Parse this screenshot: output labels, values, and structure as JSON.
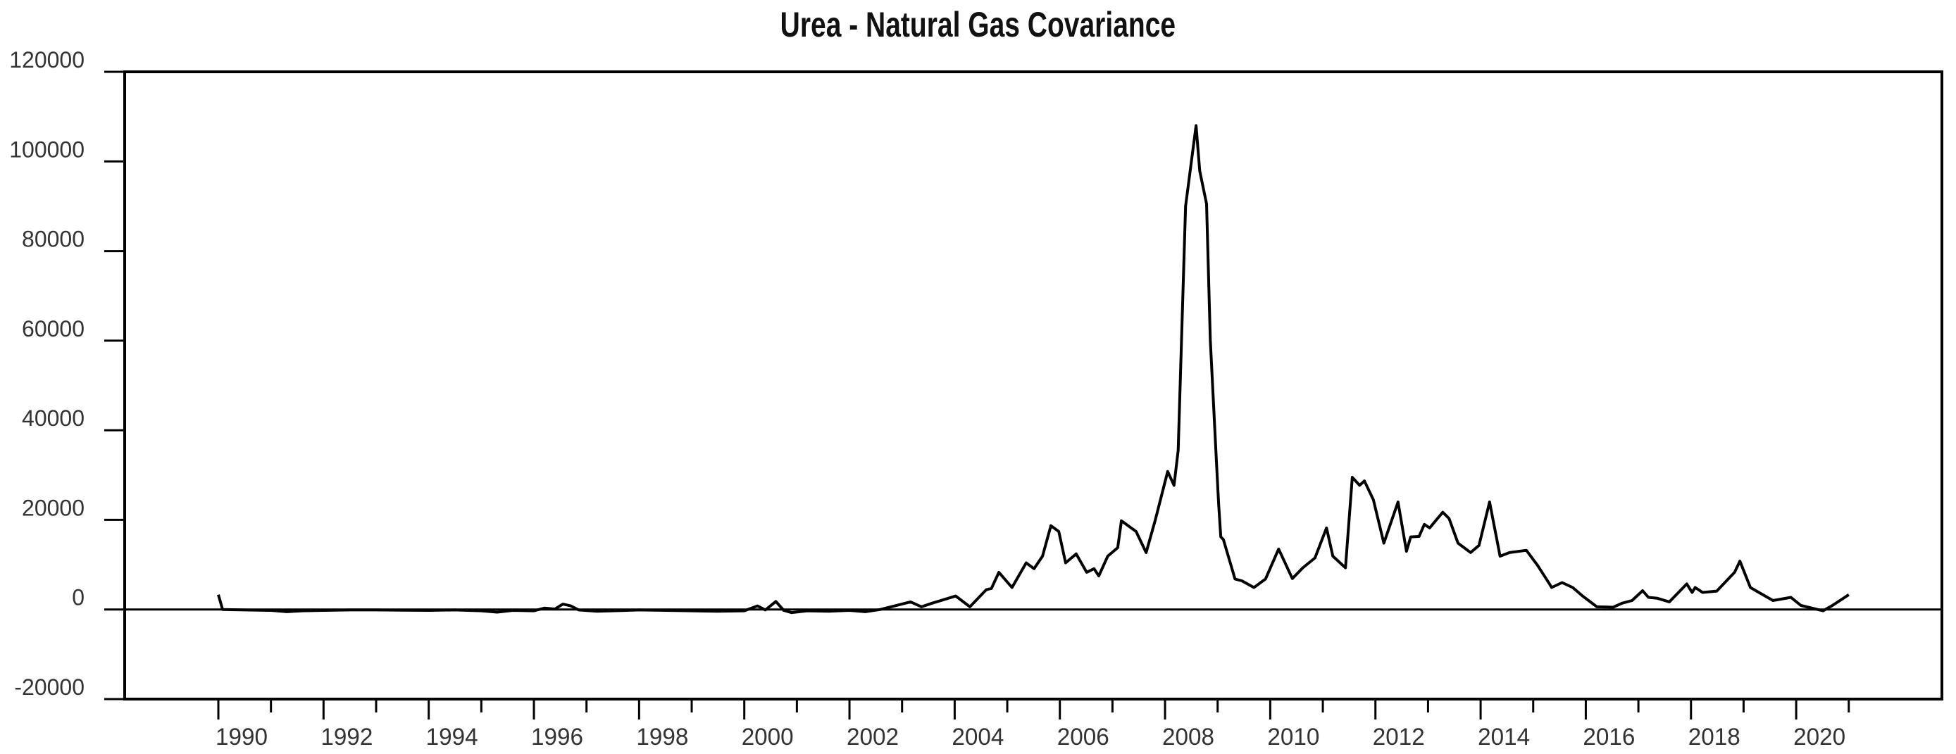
{
  "chart_data": {
    "type": "line",
    "title": "Urea - Natural Gas Covariance",
    "xlabel": "",
    "ylabel": "",
    "ylim": [
      -20000,
      120000
    ],
    "xlim": [
      1989.55,
      2022.35
    ],
    "grid": false,
    "legend": null,
    "zero_line": true,
    "y_ticks": [
      -20000,
      0,
      20000,
      40000,
      60000,
      80000,
      100000,
      120000
    ],
    "y_tick_labels": [
      "-20000",
      "0",
      "20000",
      "40000",
      "60000",
      "80000",
      "100000",
      "120000"
    ],
    "x_ticks": [
      1990,
      1992,
      1994,
      1996,
      1998,
      2000,
      2002,
      2004,
      2006,
      2008,
      2010,
      2012,
      2014,
      2016,
      2018,
      2020
    ],
    "x_tick_labels": [
      "1990",
      "1992",
      "1994",
      "1996",
      "1998",
      "2000",
      "2002",
      "2004",
      "2006",
      "2008",
      "2010",
      "2012",
      "2014",
      "2016",
      "2018",
      "2020"
    ],
    "x_minor_ticks": [
      1991,
      1993,
      1995,
      1997,
      1999,
      2001,
      2003,
      2005,
      2007,
      2009,
      2011,
      2013,
      2015,
      2017,
      2019,
      2021
    ],
    "series": [
      {
        "name": "Urea - Natural Gas Covariance",
        "color": "#000000",
        "points": [
          [
            1990.0,
            3300
          ],
          [
            1990.08,
            0
          ],
          [
            1990.5,
            -100
          ],
          [
            1991.0,
            -200
          ],
          [
            1991.3,
            -500
          ],
          [
            1991.6,
            -300
          ],
          [
            1992.0,
            -200
          ],
          [
            1992.5,
            -100
          ],
          [
            1993.0,
            -100
          ],
          [
            1993.5,
            -150
          ],
          [
            1994.0,
            -200
          ],
          [
            1994.5,
            -100
          ],
          [
            1995.0,
            -300
          ],
          [
            1995.3,
            -600
          ],
          [
            1995.6,
            -200
          ],
          [
            1996.0,
            -300
          ],
          [
            1996.2,
            300
          ],
          [
            1996.4,
            100
          ],
          [
            1996.55,
            1200
          ],
          [
            1996.7,
            800
          ],
          [
            1996.85,
            -100
          ],
          [
            1997.2,
            -400
          ],
          [
            1997.5,
            -300
          ],
          [
            1998.0,
            -100
          ],
          [
            1998.5,
            -200
          ],
          [
            1999.0,
            -300
          ],
          [
            1999.5,
            -400
          ],
          [
            2000.0,
            -300
          ],
          [
            2000.25,
            800
          ],
          [
            2000.4,
            -100
          ],
          [
            2000.6,
            1800
          ],
          [
            2000.75,
            -200
          ],
          [
            2000.9,
            -700
          ],
          [
            2001.2,
            -300
          ],
          [
            2001.6,
            -400
          ],
          [
            2002.0,
            -200
          ],
          [
            2002.3,
            -500
          ],
          [
            2002.59,
            0
          ],
          [
            2003.16,
            1700
          ],
          [
            2003.37,
            600
          ],
          [
            2003.57,
            1400
          ],
          [
            2004.02,
            3000
          ],
          [
            2004.29,
            600
          ],
          [
            2004.6,
            4400
          ],
          [
            2004.7,
            4700
          ],
          [
            2004.84,
            8300
          ],
          [
            2005.09,
            4900
          ],
          [
            2005.36,
            10400
          ],
          [
            2005.51,
            9100
          ],
          [
            2005.67,
            11900
          ],
          [
            2005.83,
            18700
          ],
          [
            2005.98,
            17400
          ],
          [
            2006.11,
            10400
          ],
          [
            2006.31,
            12400
          ],
          [
            2006.51,
            8300
          ],
          [
            2006.65,
            9100
          ],
          [
            2006.74,
            7500
          ],
          [
            2006.91,
            11900
          ],
          [
            2007.1,
            13800
          ],
          [
            2007.17,
            19800
          ],
          [
            2007.45,
            17400
          ],
          [
            2007.64,
            12700
          ],
          [
            2007.81,
            19800
          ],
          [
            2008.05,
            30800
          ],
          [
            2008.17,
            27700
          ],
          [
            2008.25,
            35500
          ],
          [
            2008.39,
            90000
          ],
          [
            2008.59,
            108000
          ],
          [
            2008.66,
            97900
          ],
          [
            2008.79,
            90500
          ],
          [
            2008.86,
            60200
          ],
          [
            2008.98,
            32400
          ],
          [
            2009.02,
            23400
          ],
          [
            2009.06,
            16200
          ],
          [
            2009.11,
            15600
          ],
          [
            2009.33,
            6800
          ],
          [
            2009.46,
            6400
          ],
          [
            2009.69,
            4900
          ],
          [
            2009.91,
            6800
          ],
          [
            2010.16,
            13500
          ],
          [
            2010.42,
            6900
          ],
          [
            2010.62,
            9300
          ],
          [
            2010.85,
            11500
          ],
          [
            2011.07,
            18200
          ],
          [
            2011.19,
            11900
          ],
          [
            2011.43,
            9300
          ],
          [
            2011.56,
            29500
          ],
          [
            2011.7,
            27700
          ],
          [
            2011.79,
            28700
          ],
          [
            2011.96,
            24500
          ],
          [
            2012.16,
            14800
          ],
          [
            2012.43,
            24000
          ],
          [
            2012.59,
            13000
          ],
          [
            2012.67,
            16200
          ],
          [
            2012.83,
            16300
          ],
          [
            2012.93,
            19000
          ],
          [
            2013.03,
            18200
          ],
          [
            2013.28,
            21700
          ],
          [
            2013.4,
            20300
          ],
          [
            2013.57,
            14800
          ],
          [
            2013.81,
            12700
          ],
          [
            2013.97,
            14300
          ],
          [
            2014.17,
            24000
          ],
          [
            2014.37,
            11900
          ],
          [
            2014.55,
            12700
          ],
          [
            2014.87,
            13200
          ],
          [
            2015.08,
            9900
          ],
          [
            2015.31,
            5700
          ],
          [
            2015.35,
            4900
          ],
          [
            2015.55,
            6000
          ],
          [
            2015.75,
            4900
          ],
          [
            2015.94,
            3000
          ],
          [
            2016.21,
            600
          ],
          [
            2016.52,
            500
          ],
          [
            2016.69,
            1400
          ],
          [
            2016.88,
            2000
          ],
          [
            2017.08,
            4200
          ],
          [
            2017.19,
            2700
          ],
          [
            2017.36,
            2500
          ],
          [
            2017.59,
            1700
          ],
          [
            2017.92,
            5700
          ],
          [
            2018.02,
            3800
          ],
          [
            2018.08,
            4900
          ],
          [
            2018.22,
            3800
          ],
          [
            2018.49,
            4100
          ],
          [
            2018.83,
            8300
          ],
          [
            2018.93,
            10800
          ],
          [
            2019.13,
            4900
          ],
          [
            2019.29,
            3800
          ],
          [
            2019.56,
            2000
          ],
          [
            2019.9,
            2700
          ],
          [
            2020.09,
            900
          ],
          [
            2020.51,
            -300
          ],
          [
            2020.69,
            900
          ],
          [
            2021.0,
            3300
          ]
        ]
      }
    ]
  }
}
